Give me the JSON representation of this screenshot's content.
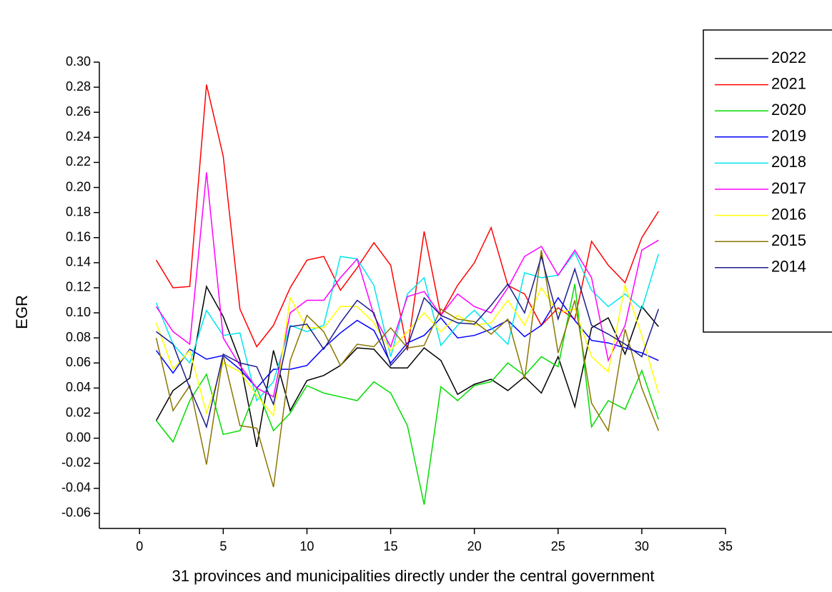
{
  "chart_data": {
    "type": "line",
    "x_label": "31 provinces and municipalities directly under the central government",
    "y_label": "EGR",
    "x": [
      1,
      2,
      3,
      4,
      5,
      6,
      7,
      8,
      9,
      10,
      11,
      12,
      13,
      14,
      15,
      16,
      17,
      18,
      19,
      20,
      21,
      22,
      23,
      24,
      25,
      26,
      27,
      28,
      29,
      30,
      31
    ],
    "xlim": [
      -2.4,
      35
    ],
    "xticks": [
      0,
      5,
      10,
      15,
      20,
      25,
      30,
      35
    ],
    "ylim": [
      -0.072,
      0.3
    ],
    "yticks": [
      {
        "value": -0.06,
        "label": "-0.06"
      },
      {
        "value": -0.04,
        "label": "-0.04"
      },
      {
        "value": -0.02,
        "label": "-0.02"
      },
      {
        "value": 0,
        "label": "0.00"
      },
      {
        "value": 0.02,
        "label": "0.02"
      },
      {
        "value": 0.04,
        "label": "0.04"
      },
      {
        "value": 0.06,
        "label": "0.06"
      },
      {
        "value": 0.08,
        "label": "0.08"
      },
      {
        "value": 0.1,
        "label": "0.10"
      },
      {
        "value": 0.12,
        "label": "0.12"
      },
      {
        "value": 0.14,
        "label": "0.14"
      },
      {
        "value": 0.16,
        "label": "0.16"
      },
      {
        "value": 0.18,
        "label": "0.18"
      },
      {
        "value": 0.2,
        "label": "0.20"
      },
      {
        "value": 0.22,
        "label": "0.22"
      },
      {
        "value": 0.24,
        "label": "0.24"
      },
      {
        "value": 0.26,
        "label": "0.26"
      },
      {
        "value": 0.28,
        "label": "0.28"
      },
      {
        "value": 0.3,
        "label": "0.30"
      }
    ],
    "grid": false,
    "legend": "top-right",
    "series": [
      {
        "name": "2022",
        "color": "#000000",
        "values": [
          0.014,
          0.038,
          0.048,
          0.121,
          0.097,
          0.062,
          -0.007,
          0.07,
          0.022,
          0.046,
          0.05,
          0.058,
          0.072,
          0.071,
          0.056,
          0.056,
          0.072,
          0.062,
          0.035,
          0.043,
          0.047,
          0.038,
          0.049,
          0.036,
          0.065,
          0.025,
          0.088,
          0.096,
          0.067,
          0.105,
          0.089
        ]
      },
      {
        "name": "2021",
        "color": "#ff0000",
        "values": [
          0.142,
          0.12,
          0.121,
          0.282,
          0.225,
          0.103,
          0.073,
          0.09,
          0.12,
          0.142,
          0.145,
          0.118,
          0.136,
          0.156,
          0.138,
          0.07,
          0.165,
          0.098,
          0.122,
          0.14,
          0.168,
          0.122,
          0.115,
          0.09,
          0.104,
          0.095,
          0.157,
          0.138,
          0.124,
          0.16,
          0.181
        ]
      },
      {
        "name": "2020",
        "color": "#00dd00",
        "values": [
          0.014,
          -0.003,
          0.03,
          0.051,
          0.003,
          0.006,
          0.04,
          0.006,
          0.02,
          0.042,
          0.036,
          0.033,
          0.03,
          0.045,
          0.036,
          0.01,
          -0.053,
          0.041,
          0.03,
          0.042,
          0.045,
          0.06,
          0.05,
          0.065,
          0.057,
          0.123,
          0.009,
          0.03,
          0.023,
          0.054,
          0.015
        ]
      },
      {
        "name": "2019",
        "color": "#0000ff",
        "values": [
          0.07,
          0.052,
          0.071,
          0.063,
          0.066,
          0.055,
          0.04,
          0.055,
          0.055,
          0.058,
          0.072,
          0.084,
          0.094,
          0.086,
          0.06,
          0.076,
          0.082,
          0.096,
          0.08,
          0.082,
          0.087,
          0.094,
          0.081,
          0.09,
          0.112,
          0.094,
          0.078,
          0.076,
          0.072,
          0.068,
          0.062
        ]
      },
      {
        "name": "2018",
        "color": "#00e5ee",
        "values": [
          0.108,
          0.075,
          0.06,
          0.102,
          0.082,
          0.084,
          0.03,
          0.045,
          0.09,
          0.085,
          0.09,
          0.145,
          0.143,
          0.122,
          0.065,
          0.115,
          0.128,
          0.074,
          0.09,
          0.102,
          0.088,
          0.075,
          0.132,
          0.128,
          0.13,
          0.148,
          0.118,
          0.105,
          0.115,
          0.103,
          0.147
        ]
      },
      {
        "name": "2017",
        "color": "#ff00ff",
        "values": [
          0.105,
          0.085,
          0.075,
          0.212,
          0.08,
          0.058,
          0.04,
          0.033,
          0.1,
          0.11,
          0.11,
          0.128,
          0.143,
          0.098,
          0.073,
          0.113,
          0.117,
          0.098,
          0.115,
          0.105,
          0.1,
          0.12,
          0.145,
          0.153,
          0.13,
          0.15,
          0.128,
          0.062,
          0.09,
          0.15,
          0.158
        ]
      },
      {
        "name": "2016",
        "color": "#ffff00",
        "values": [
          0.092,
          0.055,
          0.07,
          0.02,
          0.06,
          0.053,
          0.034,
          0.018,
          0.112,
          0.088,
          0.088,
          0.105,
          0.105,
          0.092,
          0.07,
          0.085,
          0.1,
          0.085,
          0.098,
          0.09,
          0.092,
          0.11,
          0.09,
          0.12,
          0.1,
          0.103,
          0.065,
          0.053,
          0.122,
          0.082,
          0.036
        ]
      },
      {
        "name": "2015",
        "color": "#8b7500",
        "values": [
          0.08,
          0.022,
          0.042,
          -0.021,
          0.066,
          0.01,
          0.008,
          -0.039,
          0.062,
          0.098,
          0.085,
          0.058,
          0.075,
          0.073,
          0.088,
          0.072,
          0.074,
          0.103,
          0.095,
          0.093,
          0.083,
          0.095,
          0.047,
          0.15,
          0.068,
          0.11,
          0.028,
          0.006,
          0.087,
          0.04,
          0.006
        ]
      },
      {
        "name": "2014",
        "color": "#1c1c8c",
        "values": [
          0.085,
          0.075,
          0.04,
          0.009,
          0.067,
          0.06,
          0.057,
          0.027,
          0.089,
          0.091,
          0.071,
          0.092,
          0.11,
          0.1,
          0.058,
          0.073,
          0.112,
          0.098,
          0.092,
          0.091,
          0.106,
          0.123,
          0.1,
          0.145,
          0.095,
          0.135,
          0.09,
          0.083,
          0.075,
          0.065,
          0.103
        ]
      }
    ]
  }
}
